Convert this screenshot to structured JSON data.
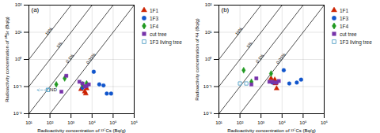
{
  "chart_data": [
    {
      "type": "scatter",
      "title": "(a)",
      "xlabel": "Radioactivity concentration of ¹³⁷Cs (Bq/g)",
      "ylabel": "Radioactivity concentration of ⁹⁰Sr (Bq/g)",
      "log": true,
      "grid": true,
      "legend": "right",
      "xlim": [
        10,
        1000000
      ],
      "ylim": [
        0.01,
        100
      ],
      "xticks": [
        {
          "value": 10,
          "label": "10¹"
        },
        {
          "value": 100,
          "label": "10²"
        },
        {
          "value": 1000,
          "label": "10³"
        },
        {
          "value": 10000,
          "label": "10⁴"
        },
        {
          "value": 100000,
          "label": "10⁵"
        },
        {
          "value": 1000000,
          "label": "10⁶"
        }
      ],
      "yticks": [
        {
          "value": 0.01,
          "label": "10⁻²"
        },
        {
          "value": 0.1,
          "label": "10⁻¹"
        },
        {
          "value": 1,
          "label": "10⁰"
        },
        {
          "value": 10,
          "label": "10¹"
        },
        {
          "value": 100,
          "label": "10²"
        }
      ],
      "series": [
        {
          "name": "1F1",
          "color": "#cc2200",
          "marker": "triangle",
          "x": [
            3000,
            4500,
            5000,
            5500
          ],
          "values": [
            0.08,
            0.065,
            0.055,
            0.085
          ]
        },
        {
          "name": "1F3",
          "color": "#1155cc",
          "marker": "circle",
          "x": [
            3500,
            12000,
            22000,
            35000,
            50000,
            80000
          ],
          "values": [
            0.09,
            0.35,
            0.12,
            0.11,
            0.055,
            0.055
          ]
        },
        {
          "name": "1F4",
          "color": "#229922",
          "marker": "diamond",
          "x": [
            200,
            500,
            3500,
            5500
          ],
          "values": [
            0.12,
            0.2,
            0.12,
            0.13
          ]
        },
        {
          "name": "cut tree",
          "color": "#7733aa",
          "marker": "square",
          "x": [
            350,
            600,
            2500,
            3500,
            4500,
            5500,
            7000
          ],
          "values": [
            0.065,
            0.25,
            0.15,
            0.13,
            0.1,
            0.105,
            0.12
          ]
        },
        {
          "name": "1F3 living tree",
          "color": "#66aacc",
          "marker": "open-square",
          "x": [
            80,
            80
          ],
          "values": [
            0.075,
            0.075
          ]
        }
      ],
      "ratio_lines": [
        {
          "label": "10%",
          "ratio": 0.1
        },
        {
          "label": "1%",
          "ratio": 0.01
        },
        {
          "label": "0.1%",
          "ratio": 0.001
        },
        {
          "label": "0.01%",
          "ratio": 0.0001
        }
      ],
      "annotations": [
        {
          "text": "ND",
          "x": 100,
          "y": 0.065
        }
      ],
      "arrows": [
        {
          "x1": 70,
          "y1": 0.075,
          "x2": 25,
          "y2": 0.075,
          "color": "#66aacc",
          "line_style": "dashed"
        }
      ]
    },
    {
      "type": "scatter",
      "title": "(b)",
      "xlabel": "Radioactivity concentration of ¹³⁷Cs (Bq/g)",
      "ylabel": "Radioactivity concentration of ³H (Bq/g)",
      "log": true,
      "grid": true,
      "legend": "right",
      "xlim": [
        10,
        1000000
      ],
      "ylim": [
        0.01,
        100
      ],
      "xticks": [
        {
          "value": 10,
          "label": "10¹"
        },
        {
          "value": 100,
          "label": "10²"
        },
        {
          "value": 1000,
          "label": "10³"
        },
        {
          "value": 10000,
          "label": "10⁴"
        },
        {
          "value": 100000,
          "label": "10⁵"
        },
        {
          "value": 1000000,
          "label": "10⁶"
        }
      ],
      "yticks": [
        {
          "value": 0.01,
          "label": "10⁻²"
        },
        {
          "value": 0.1,
          "label": "10⁻¹"
        },
        {
          "value": 1,
          "label": "10⁰"
        },
        {
          "value": 10,
          "label": "10¹"
        },
        {
          "value": 100,
          "label": "10²"
        }
      ],
      "series": [
        {
          "name": "1F1",
          "color": "#cc2200",
          "marker": "triangle",
          "x": [
            3000,
            4500,
            4800,
            5500
          ],
          "values": [
            0.2,
            0.18,
            0.13,
            0.085
          ]
        },
        {
          "name": "1F3",
          "color": "#1155cc",
          "marker": "circle",
          "x": [
            3500,
            12000,
            22000,
            50000,
            80000
          ],
          "values": [
            0.14,
            0.4,
            0.13,
            0.14,
            0.18
          ]
        },
        {
          "name": "1F4",
          "color": "#229922",
          "marker": "diamond",
          "x": [
            150,
            350,
            3000
          ],
          "values": [
            0.4,
            0.15,
            0.3
          ]
        },
        {
          "name": "cut tree",
          "color": "#7733aa",
          "marker": "square",
          "x": [
            350,
            600,
            2500,
            3500,
            4500,
            5500,
            7000
          ],
          "values": [
            0.12,
            0.2,
            0.15,
            0.15,
            0.14,
            0.14,
            0.16
          ]
        },
        {
          "name": "1F3 living tree",
          "color": "#66aacc",
          "marker": "open-square",
          "x": [
            100,
            200
          ],
          "values": [
            0.13,
            0.13
          ]
        }
      ],
      "ratio_lines": [
        {
          "label": "10%",
          "ratio": 0.1
        },
        {
          "label": "1%",
          "ratio": 0.01
        },
        {
          "label": "0.1%",
          "ratio": 0.001
        },
        {
          "label": "0.01%",
          "ratio": 0.0001
        }
      ]
    }
  ]
}
